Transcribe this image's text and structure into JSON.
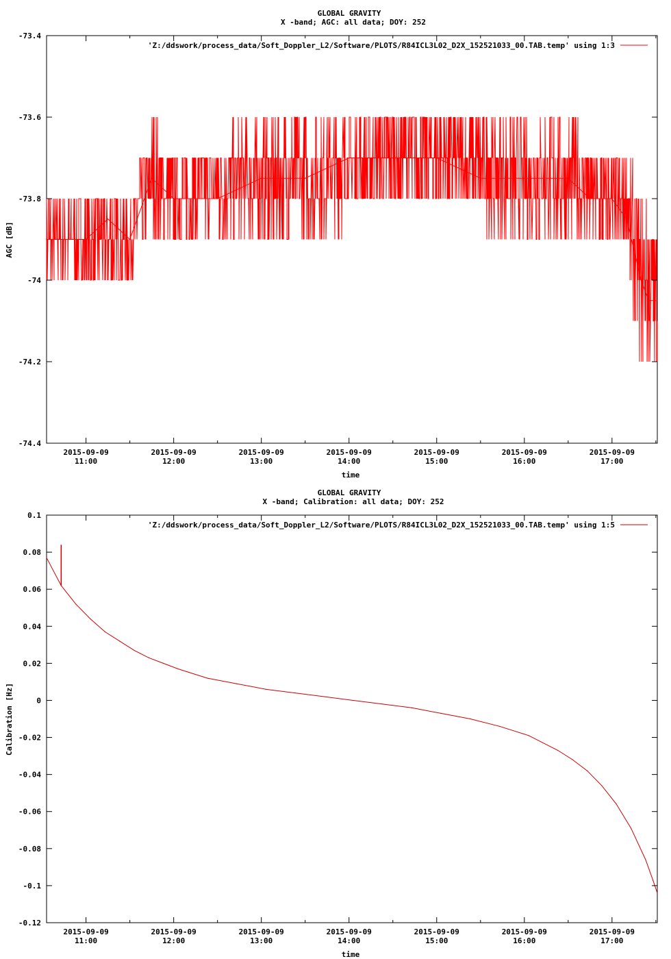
{
  "chart_data": [
    {
      "type": "line",
      "title": "GLOBAL GRAVITY",
      "subtitle": "X -band; AGC: all data; DOY: 252",
      "xlabel": "time",
      "ylabel": "AGC [dB]",
      "ylim": [
        -74.4,
        -73.4
      ],
      "xlim": [
        "2015-09-09 10:33",
        "2015-09-09 17:31"
      ],
      "grid": false,
      "legend_position": "top-right",
      "yticks": [
        -73.4,
        -73.6,
        -73.8,
        -74,
        -74.2,
        -74.4
      ],
      "ytick_labels": [
        "-73.4",
        "-73.6",
        "-73.8",
        "-74",
        "-74.2",
        "-74.4"
      ],
      "xticks": [
        "11:00",
        "12:00",
        "13:00",
        "14:00",
        "15:00",
        "16:00",
        "17:00"
      ],
      "xtick_date": "2015-09-09",
      "series": [
        {
          "name": "'Z:/ddswork/process_data/Soft_Doppler_L2/Software/PLOTS/R84ICL3L02_D2X_152521033_00.TAB.temp' using 1:3",
          "color": "#ff0000",
          "x": [
            "10:33",
            "10:45",
            "11:00",
            "11:15",
            "11:30",
            "11:45",
            "12:00",
            "12:30",
            "13:00",
            "13:30",
            "14:00",
            "14:30",
            "15:00",
            "15:30",
            "16:00",
            "16:30",
            "16:45",
            "17:00",
            "17:10",
            "17:20",
            "17:25",
            "17:31"
          ],
          "y": [
            -73.9,
            -73.9,
            -73.9,
            -73.85,
            -73.9,
            -73.75,
            -73.8,
            -73.8,
            -73.75,
            -73.75,
            -73.7,
            -73.7,
            -73.7,
            -73.75,
            -73.75,
            -73.75,
            -73.8,
            -73.8,
            -73.85,
            -74.0,
            -74.05,
            -74.05
          ],
          "band_low": [
            -74.0,
            -74.0,
            -74.0,
            -74.05,
            -74.0,
            -73.9,
            -73.9,
            -73.9,
            -73.9,
            -73.9,
            -73.85,
            -73.85,
            -73.85,
            -73.85,
            -73.9,
            -73.9,
            -73.9,
            -73.95,
            -73.95,
            -74.2,
            -74.2,
            -74.2
          ],
          "band_high": [
            -73.8,
            -73.8,
            -73.8,
            -73.75,
            -73.8,
            -73.6,
            -73.7,
            -73.65,
            -73.6,
            -73.6,
            -73.6,
            -73.55,
            -73.55,
            -73.6,
            -73.6,
            -73.6,
            -73.65,
            -73.7,
            -73.7,
            -73.8,
            -73.8,
            -73.9
          ]
        }
      ]
    },
    {
      "type": "line",
      "title": "GLOBAL GRAVITY",
      "subtitle": "X -band; Calibration: all data; DOY: 252",
      "xlabel": "time",
      "ylabel": "Calibration [Hz]",
      "ylim": [
        -0.12,
        0.1
      ],
      "xlim": [
        "2015-09-09 10:33",
        "2015-09-09 17:31"
      ],
      "grid": false,
      "legend_position": "top-right",
      "yticks": [
        0.1,
        0.08,
        0.06,
        0.04,
        0.02,
        0,
        -0.02,
        -0.04,
        -0.06,
        -0.08,
        -0.1,
        -0.12
      ],
      "ytick_labels": [
        "0.1",
        "0.08",
        "0.06",
        "0.04",
        "0.02",
        "0",
        "-0.02",
        "-0.04",
        "-0.06",
        "-0.08",
        "-0.1",
        "-0.12"
      ],
      "xticks": [
        "11:00",
        "12:00",
        "13:00",
        "14:00",
        "15:00",
        "16:00",
        "17:00"
      ],
      "xtick_date": "2015-09-09",
      "series": [
        {
          "name": "'Z:/ddswork/process_data/Soft_Doppler_L2/Software/PLOTS/R84ICL3L02_D2X_152521033_00.TAB.temp' using 1:5",
          "color": "#cc0000",
          "x": [
            "10:33",
            "10:43",
            "10:53",
            "11:03",
            "11:13",
            "11:23",
            "11:33",
            "11:43",
            "11:53",
            "12:03",
            "12:23",
            "12:43",
            "13:03",
            "13:23",
            "13:43",
            "14:03",
            "14:23",
            "14:43",
            "15:03",
            "15:23",
            "15:43",
            "16:03",
            "16:23",
            "16:33",
            "16:43",
            "16:53",
            "17:03",
            "17:13",
            "17:23",
            "17:28",
            "17:31"
          ],
          "y": [
            0.077,
            0.062,
            0.052,
            0.044,
            0.037,
            0.032,
            0.027,
            0.023,
            0.02,
            0.017,
            0.012,
            0.009,
            0.006,
            0.004,
            0.002,
            0.0,
            -0.002,
            -0.004,
            -0.007,
            -0.01,
            -0.014,
            -0.019,
            -0.027,
            -0.032,
            -0.038,
            -0.046,
            -0.056,
            -0.069,
            -0.086,
            -0.097,
            -0.104
          ]
        }
      ],
      "annotations": [
        {
          "x": "10:43",
          "y_from": 0.062,
          "y_to": 0.084,
          "label": ""
        }
      ]
    }
  ]
}
